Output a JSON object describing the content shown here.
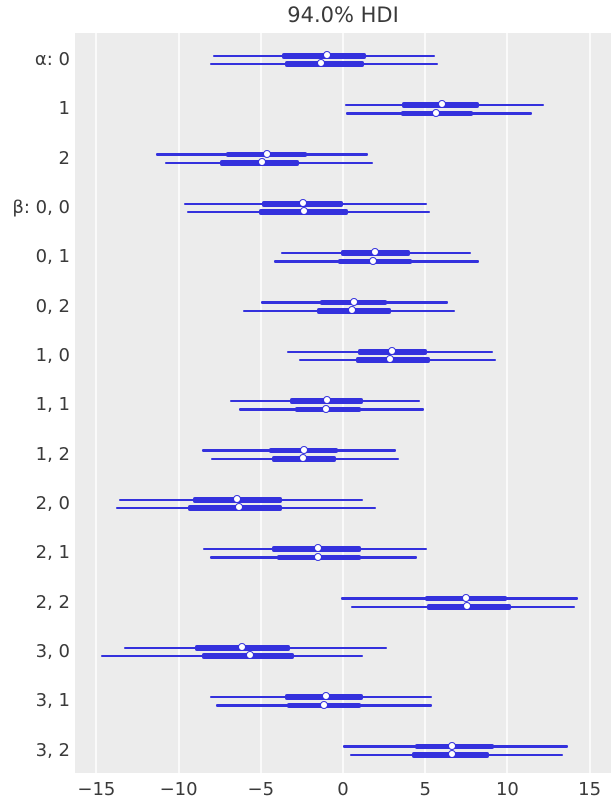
{
  "title": "94.0% HDI",
  "chart_data": {
    "type": "forest",
    "title": "94.0% HDI",
    "hdi_prob": 0.94,
    "orientation": "horizontal",
    "legend": "none",
    "grid": "vertical",
    "xlim": [
      -16.3,
      16.3
    ],
    "xticks": [
      -15,
      -10,
      -5,
      0,
      5,
      10,
      15
    ],
    "xtick_labels": [
      "−15",
      "−10",
      "−5",
      "0",
      "5",
      "10",
      "15"
    ],
    "chains_per_row": 2,
    "rows": [
      {
        "label": "α: 0",
        "chains": [
          {
            "hdi": [
              -7.9,
              5.6
            ],
            "iqr": [
              -3.7,
              1.4
            ],
            "median": -0.9
          },
          {
            "hdi": [
              -8.1,
              5.8
            ],
            "iqr": [
              -3.5,
              1.3
            ],
            "median": -1.3
          }
        ]
      },
      {
        "label": "1",
        "chains": [
          {
            "hdi": [
              0.1,
              12.2
            ],
            "iqr": [
              3.6,
              8.3
            ],
            "median": 6.1
          },
          {
            "hdi": [
              0.2,
              11.5
            ],
            "iqr": [
              3.5,
              7.9
            ],
            "median": 5.7
          }
        ]
      },
      {
        "label": "2",
        "chains": [
          {
            "hdi": [
              -11.4,
              1.5
            ],
            "iqr": [
              -7.1,
              -2.2
            ],
            "median": -4.6
          },
          {
            "hdi": [
              -10.8,
              1.8
            ],
            "iqr": [
              -7.5,
              -2.7
            ],
            "median": -4.9
          }
        ]
      },
      {
        "label": "β: 0, 0",
        "chains": [
          {
            "hdi": [
              -9.7,
              5.1
            ],
            "iqr": [
              -4.9,
              0.0
            ],
            "median": -2.4
          },
          {
            "hdi": [
              -9.5,
              5.3
            ],
            "iqr": [
              -5.1,
              0.3
            ],
            "median": -2.3
          }
        ]
      },
      {
        "label": "0, 1",
        "chains": [
          {
            "hdi": [
              -3.8,
              7.8
            ],
            "iqr": [
              -0.1,
              4.1
            ],
            "median": 2.0
          },
          {
            "hdi": [
              -4.2,
              8.3
            ],
            "iqr": [
              -0.3,
              4.2
            ],
            "median": 1.9
          }
        ]
      },
      {
        "label": "0, 2",
        "chains": [
          {
            "hdi": [
              -5.0,
              6.4
            ],
            "iqr": [
              -1.4,
              2.7
            ],
            "median": 0.7
          },
          {
            "hdi": [
              -6.1,
              6.8
            ],
            "iqr": [
              -1.6,
              2.9
            ],
            "median": 0.6
          }
        ]
      },
      {
        "label": "1, 0",
        "chains": [
          {
            "hdi": [
              -3.4,
              9.1
            ],
            "iqr": [
              0.9,
              5.1
            ],
            "median": 3.0
          },
          {
            "hdi": [
              -2.7,
              9.3
            ],
            "iqr": [
              0.8,
              5.3
            ],
            "median": 2.9
          }
        ]
      },
      {
        "label": "1, 1",
        "chains": [
          {
            "hdi": [
              -6.9,
              4.7
            ],
            "iqr": [
              -3.2,
              1.2
            ],
            "median": -0.9
          },
          {
            "hdi": [
              -6.3,
              4.9
            ],
            "iqr": [
              -2.9,
              1.1
            ],
            "median": -1.0
          }
        ]
      },
      {
        "label": "1, 2",
        "chains": [
          {
            "hdi": [
              -8.6,
              3.2
            ],
            "iqr": [
              -4.5,
              -0.3
            ],
            "median": -2.3
          },
          {
            "hdi": [
              -8.0,
              3.4
            ],
            "iqr": [
              -4.3,
              -0.4
            ],
            "median": -2.4
          }
        ]
      },
      {
        "label": "2, 0",
        "chains": [
          {
            "hdi": [
              -13.6,
              1.2
            ],
            "iqr": [
              -9.1,
              -3.7
            ],
            "median": -6.4
          },
          {
            "hdi": [
              -13.8,
              2.0
            ],
            "iqr": [
              -9.4,
              -3.7
            ],
            "median": -6.3
          }
        ]
      },
      {
        "label": "2, 1",
        "chains": [
          {
            "hdi": [
              -8.5,
              5.1
            ],
            "iqr": [
              -4.3,
              1.1
            ],
            "median": -1.5
          },
          {
            "hdi": [
              -8.1,
              4.5
            ],
            "iqr": [
              -4.0,
              1.1
            ],
            "median": -1.5
          }
        ]
      },
      {
        "label": "2, 2",
        "chains": [
          {
            "hdi": [
              -0.1,
              14.3
            ],
            "iqr": [
              5.0,
              10.0
            ],
            "median": 7.5
          },
          {
            "hdi": [
              0.5,
              14.1
            ],
            "iqr": [
              5.1,
              10.2
            ],
            "median": 7.6
          }
        ]
      },
      {
        "label": "3, 0",
        "chains": [
          {
            "hdi": [
              -13.3,
              2.7
            ],
            "iqr": [
              -9.0,
              -3.2
            ],
            "median": -6.1
          },
          {
            "hdi": [
              -14.7,
              1.2
            ],
            "iqr": [
              -8.6,
              -3.0
            ],
            "median": -5.6
          }
        ]
      },
      {
        "label": "3, 1",
        "chains": [
          {
            "hdi": [
              -8.1,
              5.4
            ],
            "iqr": [
              -3.5,
              1.2
            ],
            "median": -1.0
          },
          {
            "hdi": [
              -7.7,
              5.4
            ],
            "iqr": [
              -3.4,
              1.1
            ],
            "median": -1.1
          }
        ]
      },
      {
        "label": "3, 2",
        "chains": [
          {
            "hdi": [
              0.0,
              13.7
            ],
            "iqr": [
              4.4,
              9.2
            ],
            "median": 6.7
          },
          {
            "hdi": [
              0.4,
              13.4
            ],
            "iqr": [
              4.2,
              8.9
            ],
            "median": 6.7
          }
        ]
      }
    ],
    "colors": {
      "line": "#3431dd",
      "marker_face": "#ffffff",
      "panel_bg": "#ececec",
      "grid": "#fafafa",
      "text": "#3a3a3a"
    }
  }
}
